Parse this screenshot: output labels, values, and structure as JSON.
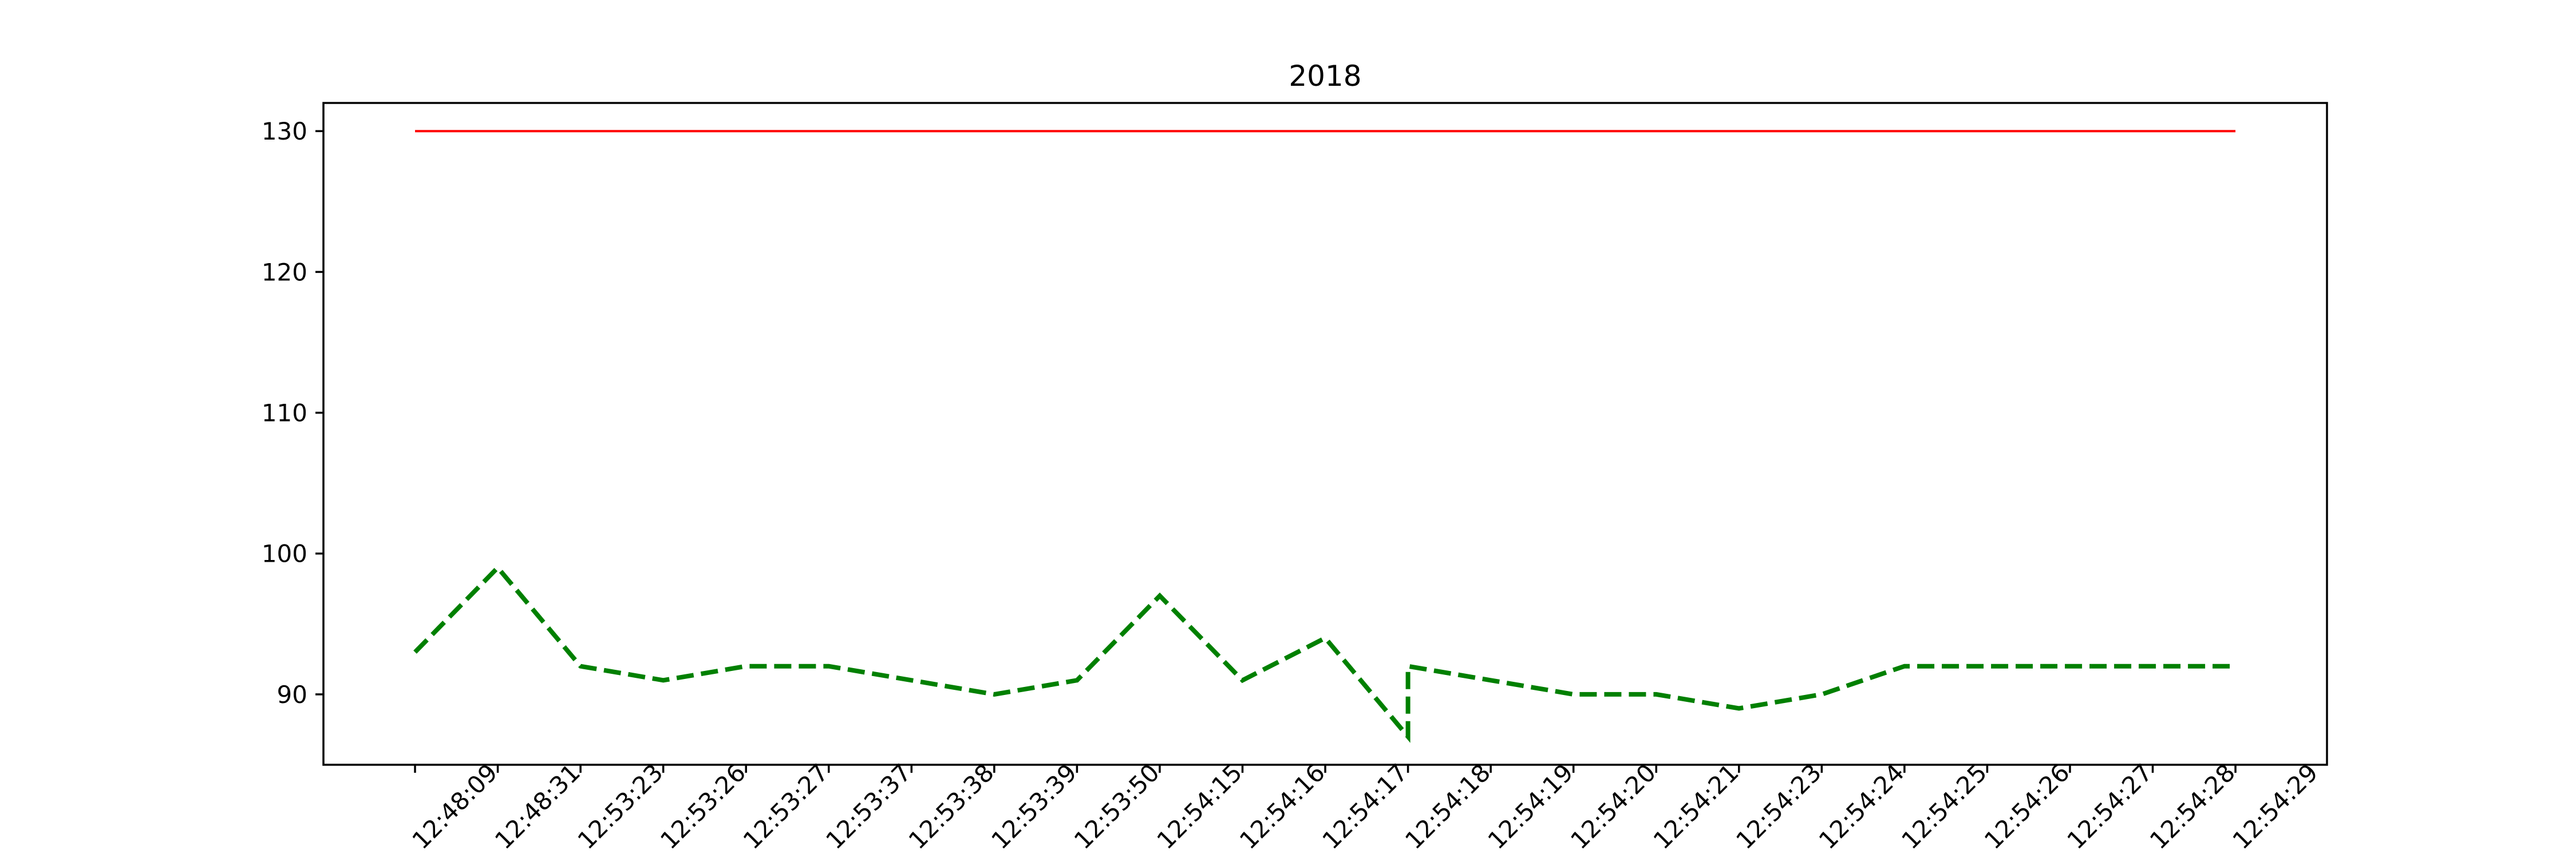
{
  "chart_data": {
    "type": "line",
    "title": "2018",
    "xlabel": "",
    "ylabel": "",
    "categories": [
      "12:48:09",
      "12:48:31",
      "12:53:23",
      "12:53:26",
      "12:53:27",
      "12:53:37",
      "12:53:38",
      "12:53:39",
      "12:53:50",
      "12:54:15",
      "12:54:16",
      "12:54:17",
      "12:54:18",
      "12:54:19",
      "12:54:20",
      "12:54:21",
      "12:54:23",
      "12:54:24",
      "12:54:25",
      "12:54:26",
      "12:54:27",
      "12:54:28",
      "12:54:29"
    ],
    "ylim": [
      85,
      132
    ],
    "yticks": [
      90,
      100,
      110,
      120,
      130
    ],
    "grid": false,
    "series": [
      {
        "color": "#ff0000",
        "style": "solid",
        "points": [
          [
            0,
            130
          ],
          [
            22,
            130
          ]
        ]
      },
      {
        "color": "#008000",
        "style": "dashed",
        "points": [
          [
            0,
            93
          ],
          [
            1,
            99
          ],
          [
            2,
            92
          ],
          [
            3,
            91
          ],
          [
            4,
            92
          ],
          [
            5,
            92
          ],
          [
            6,
            91
          ],
          [
            7,
            90
          ],
          [
            8,
            91
          ],
          [
            9,
            97
          ],
          [
            10,
            91
          ],
          [
            11,
            94
          ],
          [
            12,
            87
          ],
          [
            12,
            92
          ],
          [
            13,
            91
          ],
          [
            14,
            90
          ],
          [
            15,
            90
          ],
          [
            16,
            89
          ],
          [
            17,
            90
          ],
          [
            18,
            92
          ],
          [
            19,
            92
          ],
          [
            20,
            92
          ],
          [
            21,
            92
          ],
          [
            22,
            92
          ]
        ]
      }
    ]
  }
}
